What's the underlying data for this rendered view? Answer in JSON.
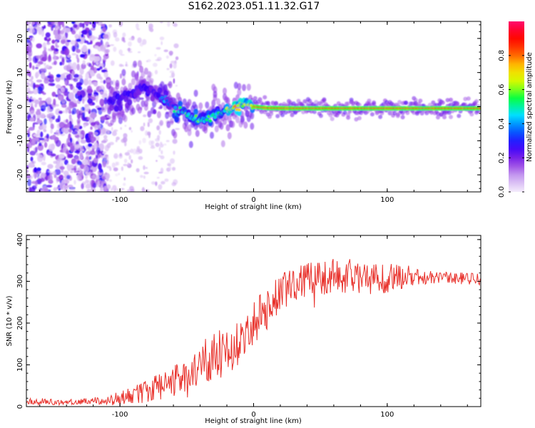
{
  "figure": {
    "title": "S162.2023.051.11.32.G17"
  },
  "chart_data": [
    {
      "type": "heatmap",
      "xlabel": "Height of straight line (km)",
      "ylabel": "Frequency (Hz)",
      "xlim": [
        -170,
        170
      ],
      "ylim": [
        -25,
        25
      ],
      "x_ticks": [
        -100,
        0,
        100
      ],
      "y_ticks": [
        -20,
        -10,
        0,
        10,
        20
      ],
      "colorbar": {
        "label": "Normalized spectral amplitude",
        "range": [
          0.0,
          1.0
        ],
        "ticks": [
          "0.0",
          "0.2",
          "0.4",
          "0.6",
          "0.8"
        ],
        "colors": [
          "#f4ecfc",
          "#c9a2f0",
          "#8a2be2",
          "#3000ff",
          "#0066ff",
          "#00e5ff",
          "#00ff44",
          "#ccff00",
          "#ffd400",
          "#ff5000",
          "#ff0000",
          "#ff0a6e"
        ]
      },
      "ridge_center_hz": [
        [
          -108,
          0.5
        ],
        [
          -100,
          1.5
        ],
        [
          -92,
          3.5
        ],
        [
          -85,
          6.0
        ],
        [
          -80,
          5.5
        ],
        [
          -75,
          4.0
        ],
        [
          -70,
          3.0
        ],
        [
          -65,
          1.5
        ],
        [
          -60,
          0.0
        ],
        [
          -55,
          -1.5
        ],
        [
          -50,
          -2.5
        ],
        [
          -45,
          -3.5
        ],
        [
          -40,
          -4.5
        ],
        [
          -35,
          -4.0
        ],
        [
          -30,
          -3.0
        ],
        [
          -25,
          -2.0
        ],
        [
          -20,
          -1.0
        ],
        [
          -15,
          -0.5
        ],
        [
          -10,
          0.0
        ],
        [
          -5,
          0.3
        ],
        [
          0,
          0.0
        ],
        [
          10,
          -0.4
        ],
        [
          30,
          -0.5
        ],
        [
          60,
          -0.5
        ],
        [
          100,
          -0.5
        ],
        [
          140,
          -0.5
        ],
        [
          170,
          -0.5
        ]
      ]
    },
    {
      "type": "line",
      "xlabel": "Height of straight line (km)",
      "ylabel": "SNR (10 * v/v)",
      "xlim": [
        -170,
        170
      ],
      "ylim": [
        0,
        410
      ],
      "x_ticks": [
        -100,
        0,
        100
      ],
      "y_ticks": [
        0,
        100,
        200,
        300,
        400
      ],
      "series": [
        {
          "color": "#e8302a",
          "x": [
            -170,
            -160,
            -150,
            -140,
            -130,
            -120,
            -110,
            -100,
            -90,
            -80,
            -70,
            -60,
            -50,
            -40,
            -30,
            -20,
            -10,
            0,
            10,
            20,
            30,
            40,
            50,
            60,
            70,
            80,
            90,
            100,
            110,
            120,
            130,
            140,
            150,
            160,
            170
          ],
          "y": [
            12,
            12,
            11,
            11,
            12,
            12,
            14,
            20,
            28,
            38,
            48,
            65,
            82,
            100,
            118,
            135,
            160,
            205,
            235,
            270,
            295,
            305,
            308,
            312,
            312,
            310,
            308,
            310,
            312,
            312,
            310,
            310,
            308,
            306,
            305
          ],
          "spread": [
            8,
            8,
            7,
            7,
            7,
            8,
            10,
            18,
            22,
            28,
            32,
            40,
            48,
            55,
            60,
            60,
            60,
            55,
            50,
            45,
            42,
            42,
            42,
            42,
            42,
            42,
            40,
            38,
            32,
            22,
            18,
            15,
            14,
            14,
            15
          ]
        }
      ]
    }
  ]
}
